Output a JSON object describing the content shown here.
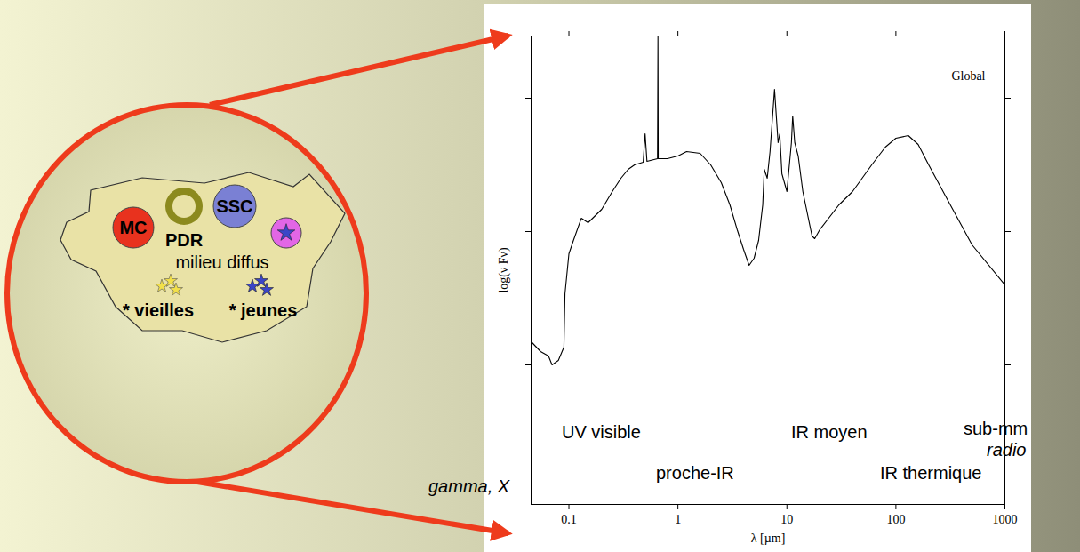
{
  "chart_data": {
    "type": "line",
    "xlabel": "λ [µm]",
    "ylabel": "log(ν Fν)",
    "log": "x",
    "grid": false,
    "tick_labels": "x",
    "xlim": [
      0.045,
      1000
    ],
    "xticks": [
      0.1,
      1,
      10,
      100,
      1000
    ],
    "ylim": [
      0,
      5.27
    ],
    "yticks": [
      1.57,
      3.07,
      4.57
    ],
    "x": [
      0.046,
      0.055,
      0.065,
      0.07,
      0.08,
      0.09,
      0.092,
      0.1,
      0.11,
      0.13,
      0.15,
      0.2,
      0.25,
      0.3,
      0.35,
      0.4,
      0.48,
      0.5,
      0.52,
      0.65,
      0.656,
      0.66,
      0.8,
      1,
      1.2,
      1.6,
      2,
      2.5,
      3,
      3.5,
      4,
      4.5,
      5,
      5.5,
      6,
      6.2,
      6.6,
      7,
      7.7,
      8.3,
      8.6,
      9,
      10,
      11,
      11.3,
      11.8,
      12.7,
      14,
      17,
      18,
      20,
      30,
      40,
      60,
      80,
      100,
      130,
      160,
      200,
      300,
      500,
      1000
    ],
    "series": [
      {
        "name": "Global",
        "color": "#000000",
        "values": [
          1.82,
          1.72,
          1.67,
          1.57,
          1.62,
          1.77,
          2.37,
          2.82,
          2.97,
          3.22,
          3.17,
          3.32,
          3.52,
          3.67,
          3.77,
          3.82,
          3.85,
          4.17,
          3.86,
          3.89,
          5.27,
          3.89,
          3.89,
          3.92,
          3.97,
          3.95,
          3.82,
          3.62,
          3.37,
          3.09,
          2.87,
          2.69,
          2.77,
          2.97,
          3.37,
          3.77,
          3.67,
          3.97,
          4.67,
          4.07,
          4.17,
          3.72,
          3.52,
          4.07,
          4.37,
          4.07,
          3.92,
          3.52,
          3.02,
          2.99,
          3.09,
          3.37,
          3.52,
          3.82,
          4.02,
          4.12,
          4.15,
          4.05,
          3.82,
          3.42,
          2.92,
          2.47
        ]
      }
    ],
    "annotations": [
      "UV visible",
      "proche-IR",
      "IR moyen",
      "IR thermique",
      "sub-mm",
      "radio",
      "gamma, X"
    ]
  },
  "diagram": {
    "regions": [
      "MC",
      "PDR",
      "SSC"
    ],
    "medium": "milieu diffus",
    "stars": [
      "* vieilles",
      "* jeunes"
    ]
  }
}
